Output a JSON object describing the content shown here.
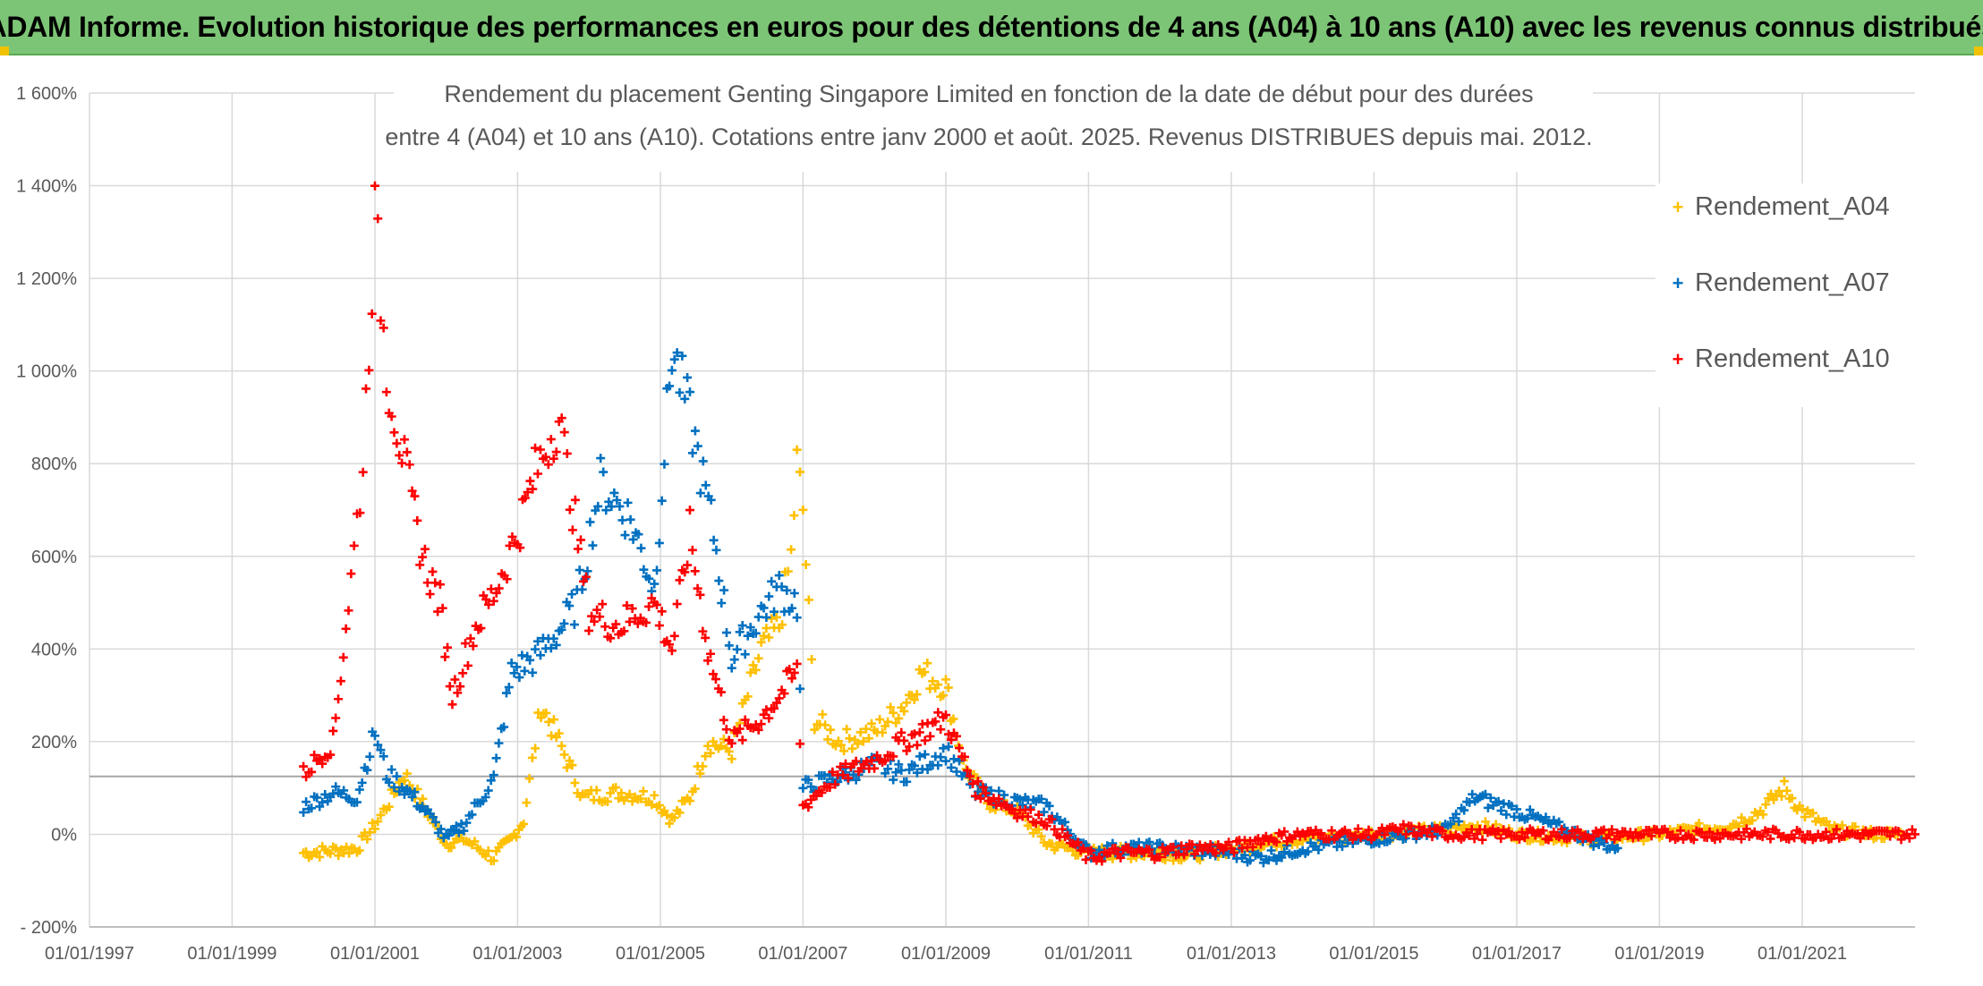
{
  "banner": {
    "title": "ADAM Informe. Evolution historique des performances en euros pour des détentions de 4 ans (A04) à 10 ans (A10) avec les revenus connus distribués"
  },
  "colors": {
    "banner": "#7dc576",
    "A04": "#ffc000",
    "A07": "#0070c0",
    "A10": "#ff0000",
    "grid": "#d9d9d9",
    "text": "#595959"
  },
  "chart_data": {
    "type": "scatter",
    "title_lines": [
      "Rendement du placement Genting Singapore Limited en fonction de la date de début pour des durées",
      "entre 4 (A04) et 10 ans (A10). Cotations entre janv 2000 et août. 2025. Revenus DISTRIBUES depuis mai. 2012."
    ],
    "xlabel": "",
    "ylabel": "",
    "x_ticks": [
      "01/01/1997",
      "01/01/1999",
      "01/01/2001",
      "01/01/2003",
      "01/01/2005",
      "01/01/2007",
      "01/01/2009",
      "01/01/2011",
      "01/01/2013",
      "01/01/2015",
      "01/01/2017",
      "01/01/2019",
      "01/01/2021"
    ],
    "y_ticks": [
      "- 200%",
      "0%",
      "200%",
      "400%",
      "600%",
      "800%",
      "1 000%",
      "1 200%",
      "1 400%",
      "1 600%"
    ],
    "xlim": [
      "01/01/1997",
      "01/08/2022"
    ],
    "ylim": [
      -200,
      1600
    ],
    "reference_line_y": 125,
    "grid": true,
    "legend_position": "right",
    "marker": "+",
    "series": [
      {
        "name": "Rendement_A04",
        "color": "#ffc000",
        "x": [
          "01/01/2000",
          "01/06/2000",
          "01/10/2000",
          "01/01/2001",
          "01/03/2001",
          "01/06/2001",
          "01/01/2002",
          "01/04/2002",
          "01/09/2002",
          "01/12/2002",
          "01/02/2003",
          "01/05/2003",
          "01/08/2003",
          "01/12/2003",
          "01/06/2004",
          "01/12/2004",
          "01/03/2005",
          "01/06/2005",
          "01/09/2005",
          "01/01/2006",
          "01/06/2006",
          "01/09/2006",
          "01/11/2006",
          "01/12/2006",
          "01/01/2007",
          "01/03/2007",
          "01/07/2007",
          "01/01/2008",
          "01/06/2008",
          "01/09/2008",
          "01/01/2009",
          "01/04/2009",
          "01/08/2009",
          "01/01/2010",
          "01/06/2010",
          "01/01/2011",
          "01/06/2011",
          "01/01/2012",
          "01/06/2012",
          "01/01/2013",
          "01/06/2013",
          "01/01/2014",
          "01/01/2015",
          "01/01/2016",
          "01/06/2016",
          "01/01/2017",
          "01/01/2018",
          "01/01/2019",
          "01/01/2020",
          "01/06/2020",
          "01/10/2020",
          "01/01/2021",
          "01/06/2021",
          "01/01/2022",
          "01/06/2022"
        ],
        "y": [
          -40,
          -35,
          -30,
          20,
          60,
          130,
          -20,
          -10,
          -50,
          -10,
          30,
          280,
          200,
          80,
          90,
          80,
          30,
          80,
          200,
          180,
          400,
          450,
          600,
          800,
          700,
          250,
          200,
          220,
          280,
          350,
          320,
          150,
          70,
          50,
          -20,
          -40,
          -40,
          -40,
          -45,
          -30,
          -20,
          -10,
          0,
          10,
          20,
          0,
          -10,
          0,
          20,
          50,
          100,
          50,
          10,
          0,
          0
        ]
      },
      {
        "name": "Rendement_A07",
        "color": "#0070c0",
        "x": [
          "01/01/2000",
          "01/06/2000",
          "01/10/2000",
          "01/01/2001",
          "01/03/2001",
          "01/06/2001",
          "01/09/2001",
          "01/01/2002",
          "01/04/2002",
          "01/09/2002",
          "01/12/2002",
          "01/04/2003",
          "01/08/2003",
          "01/11/2003",
          "01/03/2004",
          "01/08/2004",
          "01/12/2004",
          "01/03/2005",
          "01/06/2005",
          "01/10/2005",
          "01/01/2006",
          "01/06/2006",
          "01/09/2006",
          "01/12/2006",
          "01/01/2007",
          "01/06/2007",
          "01/01/2008",
          "01/06/2008",
          "01/01/2009",
          "01/06/2009",
          "01/01/2010",
          "01/06/2010",
          "01/01/2011",
          "01/06/2011",
          "01/01/2012",
          "01/01/2013",
          "01/06/2013",
          "01/01/2014",
          "01/01/2015",
          "01/01/2016",
          "01/06/2016",
          "01/01/2017",
          "01/01/2018",
          "01/06/2018"
        ],
        "y": [
          60,
          90,
          80,
          220,
          130,
          100,
          60,
          -10,
          20,
          120,
          350,
          380,
          440,
          500,
          760,
          680,
          530,
          1050,
          900,
          650,
          380,
          480,
          530,
          500,
          100,
          120,
          150,
          130,
          180,
          90,
          70,
          60,
          -40,
          -30,
          -30,
          -40,
          -50,
          -30,
          -10,
          10,
          80,
          50,
          -10,
          -30
        ]
      },
      {
        "name": "Rendement_A10",
        "color": "#ff0000",
        "x": [
          "01/01/2000",
          "01/06/2000",
          "01/09/2000",
          "01/11/2000",
          "01/01/2001",
          "01/03/2001",
          "01/06/2001",
          "01/09/2001",
          "01/12/2001",
          "01/02/2002",
          "01/06/2002",
          "01/09/2002",
          "01/01/2003",
          "01/04/2003",
          "01/08/2003",
          "01/01/2004",
          "01/06/2004",
          "01/12/2004",
          "01/03/2005",
          "01/06/2005",
          "01/09/2005",
          "01/01/2006",
          "01/06/2006",
          "01/09/2006",
          "01/12/2006",
          "01/01/2007",
          "01/06/2007",
          "01/01/2008",
          "01/06/2008",
          "01/01/2009",
          "01/06/2009",
          "01/01/2010",
          "01/06/2010",
          "01/01/2011",
          "01/06/2011",
          "01/01/2012",
          "01/06/2012",
          "01/01/2013",
          "01/06/2013",
          "01/01/2014",
          "01/01/2015",
          "01/06/2015",
          "01/01/2016",
          "01/01/2017",
          "01/01/2018",
          "01/01/2019",
          "01/01/2020",
          "01/01/2021",
          "01/01/2022",
          "01/08/2022"
        ],
        "y": [
          130,
          200,
          550,
          800,
          1330,
          1000,
          800,
          600,
          500,
          300,
          450,
          520,
          650,
          780,
          900,
          480,
          450,
          500,
          400,
          650,
          400,
          200,
          250,
          300,
          350,
          60,
          120,
          160,
          200,
          250,
          100,
          50,
          30,
          -50,
          -40,
          -40,
          -30,
          -30,
          -10,
          0,
          0,
          10,
          0,
          0,
          0,
          0,
          0,
          0,
          0,
          0
        ]
      }
    ]
  }
}
